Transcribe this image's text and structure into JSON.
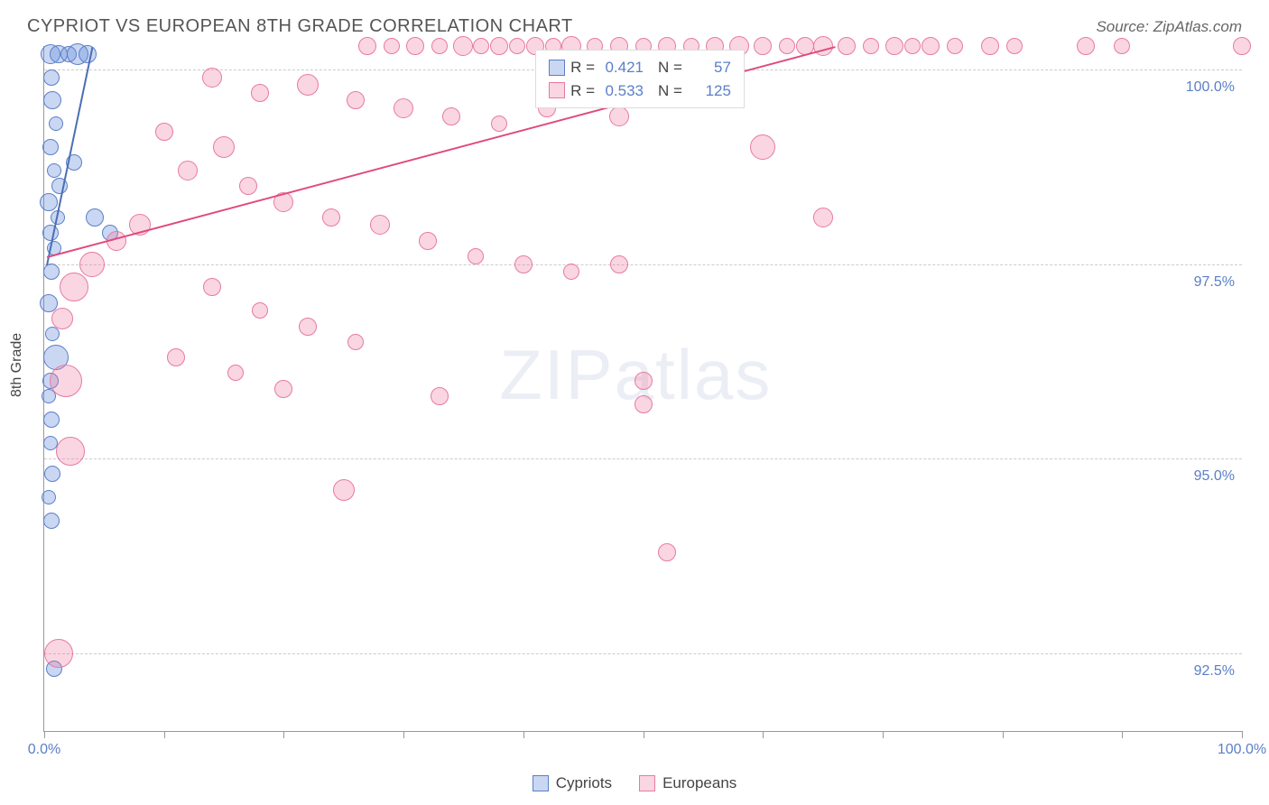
{
  "title": "CYPRIOT VS EUROPEAN 8TH GRADE CORRELATION CHART",
  "source": "Source: ZipAtlas.com",
  "watermark_zip": "ZIP",
  "watermark_atlas": "atlas",
  "ylabel": "8th Grade",
  "chart": {
    "type": "scatter",
    "background_color": "#ffffff",
    "grid_color": "#cccccc",
    "axis_color": "#999999",
    "tick_label_color": "#5b7fc7",
    "xlim": [
      0,
      100
    ],
    "ylim": [
      91.5,
      100.3
    ],
    "xticks": [
      0,
      10,
      20,
      30,
      40,
      50,
      60,
      70,
      80,
      90,
      100
    ],
    "xtick_labels": {
      "0": "0.0%",
      "100": "100.0%"
    },
    "yticks": [
      92.5,
      95.0,
      97.5,
      100.0
    ],
    "ytick_labels": [
      "92.5%",
      "95.0%",
      "97.5%",
      "100.0%"
    ],
    "series": [
      {
        "name": "Cypriots",
        "fill_color": "rgba(100,140,220,0.35)",
        "stroke_color": "#5b7fc7",
        "trend_color": "#4a6fb5",
        "trend_line": {
          "x1": 0.2,
          "y1": 97.5,
          "x2": 4.0,
          "y2": 100.3
        },
        "R": "0.421",
        "N": "57",
        "points": [
          {
            "x": 0.5,
            "y": 100.2,
            "r": 11
          },
          {
            "x": 1.2,
            "y": 100.2,
            "r": 10
          },
          {
            "x": 2.0,
            "y": 100.2,
            "r": 9
          },
          {
            "x": 2.8,
            "y": 100.2,
            "r": 12
          },
          {
            "x": 3.6,
            "y": 100.2,
            "r": 10
          },
          {
            "x": 0.6,
            "y": 99.9,
            "r": 9
          },
          {
            "x": 0.7,
            "y": 99.6,
            "r": 10
          },
          {
            "x": 1.0,
            "y": 99.3,
            "r": 8
          },
          {
            "x": 0.5,
            "y": 99.0,
            "r": 9
          },
          {
            "x": 0.8,
            "y": 98.7,
            "r": 8
          },
          {
            "x": 1.3,
            "y": 98.5,
            "r": 9
          },
          {
            "x": 0.4,
            "y": 98.3,
            "r": 10
          },
          {
            "x": 1.1,
            "y": 98.1,
            "r": 8
          },
          {
            "x": 0.5,
            "y": 97.9,
            "r": 9
          },
          {
            "x": 0.8,
            "y": 97.7,
            "r": 8
          },
          {
            "x": 2.5,
            "y": 98.8,
            "r": 9
          },
          {
            "x": 4.2,
            "y": 98.1,
            "r": 10
          },
          {
            "x": 5.5,
            "y": 97.9,
            "r": 9
          },
          {
            "x": 0.6,
            "y": 97.4,
            "r": 9
          },
          {
            "x": 0.4,
            "y": 97.0,
            "r": 10
          },
          {
            "x": 0.7,
            "y": 96.6,
            "r": 8
          },
          {
            "x": 1.0,
            "y": 96.3,
            "r": 14
          },
          {
            "x": 0.5,
            "y": 96.0,
            "r": 9
          },
          {
            "x": 0.4,
            "y": 95.8,
            "r": 8
          },
          {
            "x": 0.6,
            "y": 95.5,
            "r": 9
          },
          {
            "x": 0.5,
            "y": 95.2,
            "r": 8
          },
          {
            "x": 0.7,
            "y": 94.8,
            "r": 9
          },
          {
            "x": 0.4,
            "y": 94.5,
            "r": 8
          },
          {
            "x": 0.6,
            "y": 94.2,
            "r": 9
          },
          {
            "x": 0.8,
            "y": 92.3,
            "r": 9
          }
        ]
      },
      {
        "name": "Europeans",
        "fill_color": "rgba(240,120,160,0.30)",
        "stroke_color": "#e87aa0",
        "trend_color": "#e04a80",
        "trend_line": {
          "x1": 0.2,
          "y1": 97.6,
          "x2": 66.0,
          "y2": 100.3
        },
        "R": "0.533",
        "N": "125",
        "points": [
          {
            "x": 27.0,
            "y": 100.3,
            "r": 10
          },
          {
            "x": 29.0,
            "y": 100.3,
            "r": 9
          },
          {
            "x": 31.0,
            "y": 100.3,
            "r": 10
          },
          {
            "x": 33.0,
            "y": 100.3,
            "r": 9
          },
          {
            "x": 35.0,
            "y": 100.3,
            "r": 11
          },
          {
            "x": 36.5,
            "y": 100.3,
            "r": 9
          },
          {
            "x": 38.0,
            "y": 100.3,
            "r": 10
          },
          {
            "x": 39.5,
            "y": 100.3,
            "r": 9
          },
          {
            "x": 41.0,
            "y": 100.3,
            "r": 10
          },
          {
            "x": 42.5,
            "y": 100.3,
            "r": 9
          },
          {
            "x": 44.0,
            "y": 100.3,
            "r": 11
          },
          {
            "x": 46.0,
            "y": 100.3,
            "r": 9
          },
          {
            "x": 48.0,
            "y": 100.3,
            "r": 10
          },
          {
            "x": 50.0,
            "y": 100.3,
            "r": 9
          },
          {
            "x": 52.0,
            "y": 100.3,
            "r": 10
          },
          {
            "x": 54.0,
            "y": 100.3,
            "r": 9
          },
          {
            "x": 56.0,
            "y": 100.3,
            "r": 10
          },
          {
            "x": 58.0,
            "y": 100.3,
            "r": 11
          },
          {
            "x": 60.0,
            "y": 100.3,
            "r": 10
          },
          {
            "x": 62.0,
            "y": 100.3,
            "r": 9
          },
          {
            "x": 63.5,
            "y": 100.3,
            "r": 10
          },
          {
            "x": 65.0,
            "y": 100.3,
            "r": 11
          },
          {
            "x": 67.0,
            "y": 100.3,
            "r": 10
          },
          {
            "x": 69.0,
            "y": 100.3,
            "r": 9
          },
          {
            "x": 71.0,
            "y": 100.3,
            "r": 10
          },
          {
            "x": 72.5,
            "y": 100.3,
            "r": 9
          },
          {
            "x": 74.0,
            "y": 100.3,
            "r": 10
          },
          {
            "x": 76.0,
            "y": 100.3,
            "r": 9
          },
          {
            "x": 79.0,
            "y": 100.3,
            "r": 10
          },
          {
            "x": 81.0,
            "y": 100.3,
            "r": 9
          },
          {
            "x": 87.0,
            "y": 100.3,
            "r": 10
          },
          {
            "x": 90.0,
            "y": 100.3,
            "r": 9
          },
          {
            "x": 100.0,
            "y": 100.3,
            "r": 10
          },
          {
            "x": 14.0,
            "y": 99.9,
            "r": 11
          },
          {
            "x": 18.0,
            "y": 99.7,
            "r": 10
          },
          {
            "x": 22.0,
            "y": 99.8,
            "r": 12
          },
          {
            "x": 26.0,
            "y": 99.6,
            "r": 10
          },
          {
            "x": 30.0,
            "y": 99.5,
            "r": 11
          },
          {
            "x": 34.0,
            "y": 99.4,
            "r": 10
          },
          {
            "x": 38.0,
            "y": 99.3,
            "r": 9
          },
          {
            "x": 42.0,
            "y": 99.5,
            "r": 10
          },
          {
            "x": 48.0,
            "y": 99.4,
            "r": 11
          },
          {
            "x": 60.0,
            "y": 99.0,
            "r": 14
          },
          {
            "x": 10.0,
            "y": 99.2,
            "r": 10
          },
          {
            "x": 15.0,
            "y": 99.0,
            "r": 12
          },
          {
            "x": 12.0,
            "y": 98.7,
            "r": 11
          },
          {
            "x": 17.0,
            "y": 98.5,
            "r": 10
          },
          {
            "x": 20.0,
            "y": 98.3,
            "r": 11
          },
          {
            "x": 24.0,
            "y": 98.1,
            "r": 10
          },
          {
            "x": 28.0,
            "y": 98.0,
            "r": 11
          },
          {
            "x": 32.0,
            "y": 97.8,
            "r": 10
          },
          {
            "x": 36.0,
            "y": 97.6,
            "r": 9
          },
          {
            "x": 40.0,
            "y": 97.5,
            "r": 10
          },
          {
            "x": 44.0,
            "y": 97.4,
            "r": 9
          },
          {
            "x": 48.0,
            "y": 97.5,
            "r": 10
          },
          {
            "x": 8.0,
            "y": 98.0,
            "r": 12
          },
          {
            "x": 6.0,
            "y": 97.8,
            "r": 11
          },
          {
            "x": 4.0,
            "y": 97.5,
            "r": 14
          },
          {
            "x": 2.5,
            "y": 97.2,
            "r": 16
          },
          {
            "x": 1.5,
            "y": 96.8,
            "r": 12
          },
          {
            "x": 14.0,
            "y": 97.2,
            "r": 10
          },
          {
            "x": 18.0,
            "y": 96.9,
            "r": 9
          },
          {
            "x": 22.0,
            "y": 96.7,
            "r": 10
          },
          {
            "x": 26.0,
            "y": 96.5,
            "r": 9
          },
          {
            "x": 11.0,
            "y": 96.3,
            "r": 10
          },
          {
            "x": 16.0,
            "y": 96.1,
            "r": 9
          },
          {
            "x": 20.0,
            "y": 95.9,
            "r": 10
          },
          {
            "x": 1.8,
            "y": 96.0,
            "r": 18
          },
          {
            "x": 2.2,
            "y": 95.1,
            "r": 16
          },
          {
            "x": 33.0,
            "y": 95.8,
            "r": 10
          },
          {
            "x": 50.0,
            "y": 95.7,
            "r": 10
          },
          {
            "x": 65.0,
            "y": 98.1,
            "r": 11
          },
          {
            "x": 25.0,
            "y": 94.6,
            "r": 12
          },
          {
            "x": 50.0,
            "y": 96.0,
            "r": 10
          },
          {
            "x": 52.0,
            "y": 93.8,
            "r": 10
          },
          {
            "x": 1.2,
            "y": 92.5,
            "r": 16
          }
        ]
      }
    ]
  },
  "legend_labels": {
    "R": "R =",
    "N": "N ="
  },
  "bottom_legend": [
    "Cypriots",
    "Europeans"
  ]
}
